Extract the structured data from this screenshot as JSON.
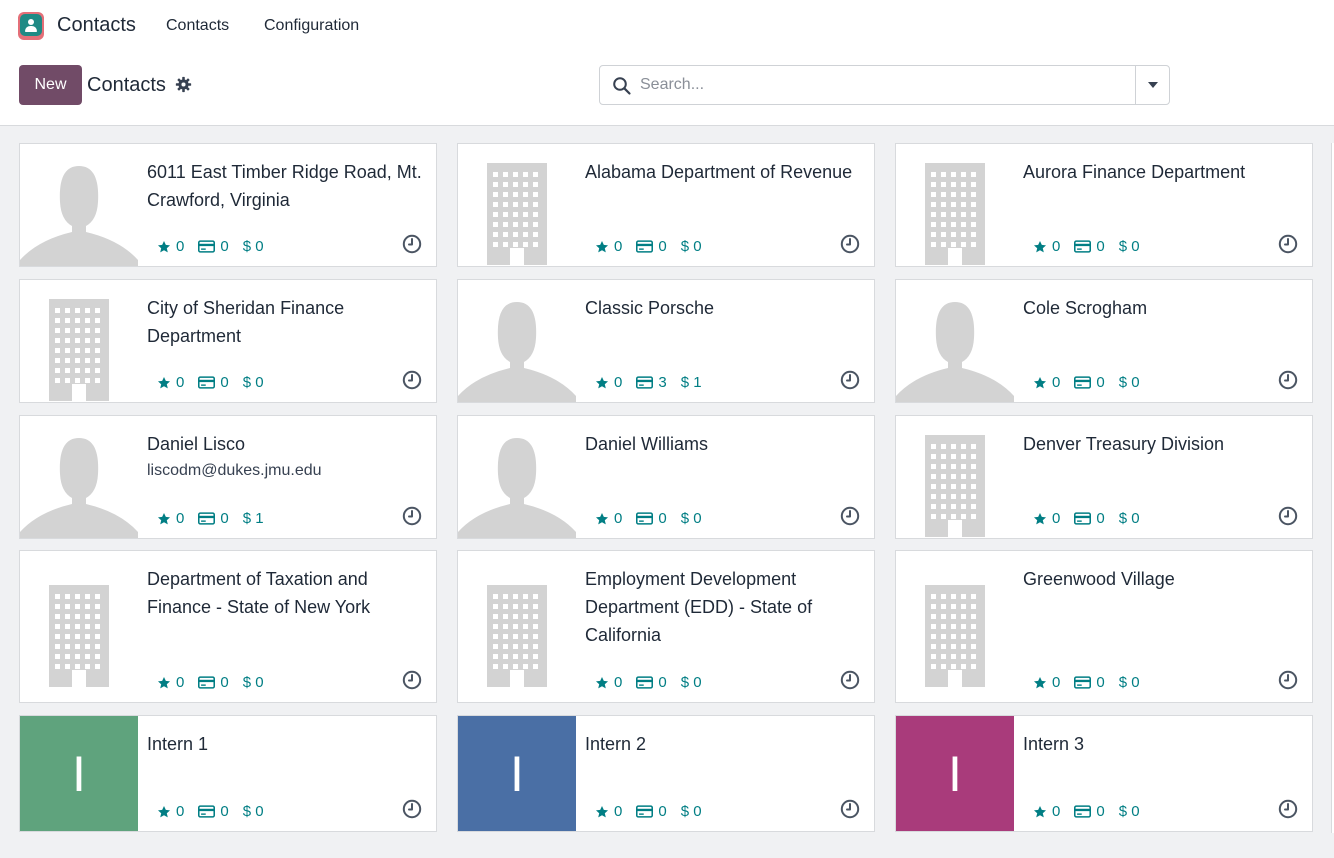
{
  "navbar": {
    "app_name": "Contacts",
    "menu": [
      "Contacts",
      "Configuration"
    ]
  },
  "control": {
    "new_label": "New",
    "breadcrumb": "Contacts",
    "search_placeholder": "Search..."
  },
  "colors": {
    "brand": "#714b67",
    "stat_text": "#017e84",
    "placeholder_gray": "#d3d3d3",
    "intern1": "#5fa37d",
    "intern2": "#4a6fa5",
    "intern3": "#a93b7b"
  },
  "stats_icons": [
    "star-icon",
    "credit-card-icon",
    "dollar-icon"
  ],
  "contacts": [
    {
      "name": "6011 East Timber Ridge Road, Mt. Crawford, Virginia",
      "avatar": "person",
      "email": "",
      "stars": "0",
      "cards": "0",
      "money": "$ 0"
    },
    {
      "name": "Alabama Department of Revenue",
      "avatar": "building",
      "email": "",
      "stars": "0",
      "cards": "0",
      "money": "$ 0"
    },
    {
      "name": "Aurora Finance Department",
      "avatar": "building",
      "email": "",
      "stars": "0",
      "cards": "0",
      "money": "$ 0"
    },
    {
      "name": "City of Sheridan Finance Department",
      "avatar": "building",
      "email": "",
      "stars": "0",
      "cards": "0",
      "money": "$ 0"
    },
    {
      "name": "Classic Porsche",
      "avatar": "person",
      "email": "",
      "stars": "0",
      "cards": "3",
      "money": "$ 1"
    },
    {
      "name": "Cole Scrogham",
      "avatar": "person",
      "email": "",
      "stars": "0",
      "cards": "0",
      "money": "$ 0"
    },
    {
      "name": "Daniel Lisco",
      "avatar": "person",
      "email": "liscodm@dukes.jmu.edu",
      "stars": "0",
      "cards": "0",
      "money": "$ 1"
    },
    {
      "name": "Daniel Williams",
      "avatar": "person",
      "email": "",
      "stars": "0",
      "cards": "0",
      "money": "$ 0"
    },
    {
      "name": "Denver Treasury Division",
      "avatar": "building",
      "email": "",
      "stars": "0",
      "cards": "0",
      "money": "$ 0"
    },
    {
      "name": "Department of Taxation and Finance - State of New York",
      "avatar": "building",
      "email": "",
      "stars": "0",
      "cards": "0",
      "money": "$ 0"
    },
    {
      "name": "Employment Development Department (EDD) - State of California",
      "avatar": "building",
      "email": "",
      "stars": "0",
      "cards": "0",
      "money": "$ 0"
    },
    {
      "name": "Greenwood Village",
      "avatar": "building",
      "email": "",
      "stars": "0",
      "cards": "0",
      "money": "$ 0"
    },
    {
      "name": "Intern 1",
      "avatar": "initial",
      "initial": "I",
      "avatar_color": "#5fa37d",
      "email": "",
      "stars": "0",
      "cards": "0",
      "money": "$ 0"
    },
    {
      "name": "Intern 2",
      "avatar": "initial",
      "initial": "I",
      "avatar_color": "#4a6fa5",
      "email": "",
      "stars": "0",
      "cards": "0",
      "money": "$ 0"
    },
    {
      "name": "Intern 3",
      "avatar": "initial",
      "initial": "I",
      "avatar_color": "#a93b7b",
      "email": "",
      "stars": "0",
      "cards": "0",
      "money": "$ 0"
    }
  ]
}
